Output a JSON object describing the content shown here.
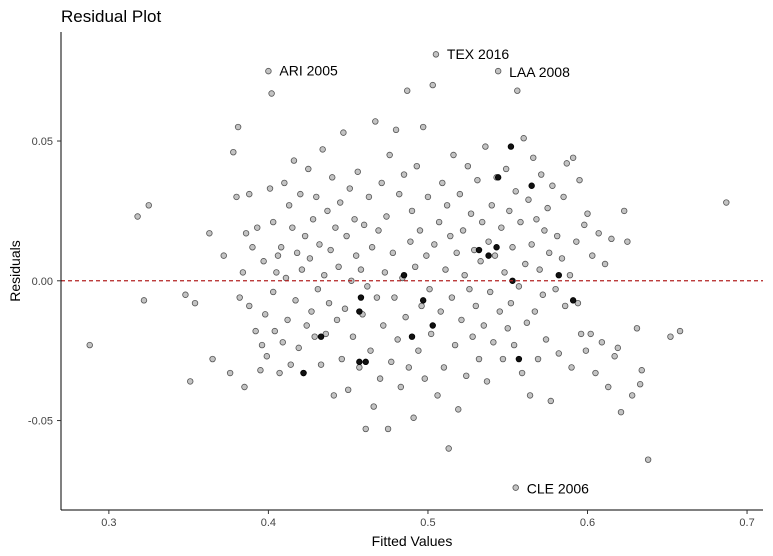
{
  "chart_data": {
    "type": "scatter",
    "title": "Residual Plot",
    "xlabel": "Fitted Values",
    "ylabel": "Residuals",
    "xlim": [
      0.27,
      0.71
    ],
    "ylim": [
      -0.082,
      0.089
    ],
    "x_ticks": [
      0.3,
      0.4,
      0.5,
      0.6,
      0.7
    ],
    "x_tick_labels": [
      "0.3",
      "0.4",
      "0.5",
      "0.6",
      "0.7"
    ],
    "y_ticks": [
      -0.05,
      0.0,
      0.05
    ],
    "y_tick_labels": [
      "-0.05",
      "0.00",
      "0.05"
    ],
    "grid": false,
    "reference_line": {
      "y": 0.0,
      "style": "dashed",
      "color": "#b22222"
    },
    "point_color": "#555555",
    "point_fill_opacity": 0.5,
    "annotations": [
      {
        "text": "ARI 2005",
        "x": 0.4,
        "y": 0.0755
      },
      {
        "text": "TEX 2016",
        "x": 0.505,
        "y": 0.0815
      },
      {
        "text": "LAA 2008",
        "x": 0.544,
        "y": 0.075
      },
      {
        "text": "CLE 2006",
        "x": 0.555,
        "y": -0.074
      }
    ],
    "points": [
      [
        0.288,
        -0.023
      ],
      [
        0.318,
        0.023
      ],
      [
        0.322,
        -0.007
      ],
      [
        0.325,
        0.027
      ],
      [
        0.348,
        -0.005
      ],
      [
        0.351,
        -0.036
      ],
      [
        0.354,
        -0.008
      ],
      [
        0.363,
        0.017
      ],
      [
        0.365,
        -0.028
      ],
      [
        0.372,
        0.009
      ],
      [
        0.376,
        -0.033
      ],
      [
        0.378,
        0.046
      ],
      [
        0.38,
        0.03
      ],
      [
        0.381,
        0.055
      ],
      [
        0.382,
        -0.006
      ],
      [
        0.384,
        0.003
      ],
      [
        0.385,
        -0.038
      ],
      [
        0.386,
        0.017
      ],
      [
        0.388,
        0.031
      ],
      [
        0.388,
        -0.009
      ],
      [
        0.39,
        0.012
      ],
      [
        0.392,
        -0.018
      ],
      [
        0.393,
        0.019
      ],
      [
        0.395,
        -0.032
      ],
      [
        0.396,
        -0.023
      ],
      [
        0.397,
        0.007
      ],
      [
        0.398,
        -0.012
      ],
      [
        0.399,
        -0.027
      ],
      [
        0.4,
        0.075
      ],
      [
        0.401,
        0.033
      ],
      [
        0.402,
        0.067
      ],
      [
        0.403,
        0.021
      ],
      [
        0.403,
        -0.004
      ],
      [
        0.404,
        -0.018
      ],
      [
        0.405,
        0.003
      ],
      [
        0.406,
        0.009
      ],
      [
        0.407,
        -0.033
      ],
      [
        0.408,
        0.012
      ],
      [
        0.409,
        -0.022
      ],
      [
        0.41,
        0.035
      ],
      [
        0.411,
        0.001
      ],
      [
        0.412,
        -0.014
      ],
      [
        0.413,
        0.027
      ],
      [
        0.414,
        -0.03
      ],
      [
        0.415,
        0.019
      ],
      [
        0.416,
        0.043
      ],
      [
        0.417,
        -0.007
      ],
      [
        0.418,
        0.01
      ],
      [
        0.419,
        -0.024
      ],
      [
        0.42,
        0.031
      ],
      [
        0.421,
        0.004
      ],
      [
        0.422,
        -0.033
      ],
      [
        0.423,
        0.016
      ],
      [
        0.424,
        -0.016
      ],
      [
        0.425,
        0.04
      ],
      [
        0.426,
        0.008
      ],
      [
        0.427,
        -0.011
      ],
      [
        0.428,
        0.022
      ],
      [
        0.429,
        -0.02
      ],
      [
        0.43,
        0.03
      ],
      [
        0.431,
        -0.003
      ],
      [
        0.432,
        0.013
      ],
      [
        0.433,
        -0.03
      ],
      [
        0.434,
        0.047
      ],
      [
        0.435,
        0.002
      ],
      [
        0.436,
        -0.019
      ],
      [
        0.437,
        0.025
      ],
      [
        0.438,
        -0.008
      ],
      [
        0.439,
        0.011
      ],
      [
        0.44,
        0.037
      ],
      [
        0.441,
        -0.041
      ],
      [
        0.442,
        0.019
      ],
      [
        0.443,
        -0.014
      ],
      [
        0.444,
        0.005
      ],
      [
        0.445,
        0.028
      ],
      [
        0.446,
        -0.028
      ],
      [
        0.447,
        0.053
      ],
      [
        0.448,
        -0.01
      ],
      [
        0.449,
        0.016
      ],
      [
        0.45,
        -0.039
      ],
      [
        0.451,
        0.033
      ],
      [
        0.452,
        0.0
      ],
      [
        0.453,
        -0.02
      ],
      [
        0.454,
        0.022
      ],
      [
        0.455,
        0.009
      ],
      [
        0.456,
        0.039
      ],
      [
        0.457,
        -0.031
      ],
      [
        0.458,
        0.004
      ],
      [
        0.459,
        -0.012
      ],
      [
        0.46,
        0.02
      ],
      [
        0.461,
        -0.053
      ],
      [
        0.462,
        -0.002
      ],
      [
        0.463,
        0.03
      ],
      [
        0.464,
        -0.025
      ],
      [
        0.465,
        0.012
      ],
      [
        0.466,
        -0.045
      ],
      [
        0.467,
        0.057
      ],
      [
        0.468,
        -0.006
      ],
      [
        0.469,
        0.018
      ],
      [
        0.47,
        -0.035
      ],
      [
        0.471,
        0.035
      ],
      [
        0.472,
        -0.016
      ],
      [
        0.473,
        0.003
      ],
      [
        0.474,
        0.023
      ],
      [
        0.475,
        -0.053
      ],
      [
        0.476,
        0.045
      ],
      [
        0.477,
        -0.029
      ],
      [
        0.478,
        0.01
      ],
      [
        0.479,
        -0.006
      ],
      [
        0.48,
        0.054
      ],
      [
        0.481,
        -0.021
      ],
      [
        0.482,
        0.031
      ],
      [
        0.483,
        -0.038
      ],
      [
        0.484,
        0.001
      ],
      [
        0.485,
        0.038
      ],
      [
        0.486,
        -0.013
      ],
      [
        0.487,
        0.068
      ],
      [
        0.488,
        -0.031
      ],
      [
        0.489,
        0.014
      ],
      [
        0.49,
        0.025
      ],
      [
        0.491,
        -0.049
      ],
      [
        0.492,
        0.005
      ],
      [
        0.493,
        0.041
      ],
      [
        0.494,
        -0.025
      ],
      [
        0.495,
        0.018
      ],
      [
        0.496,
        -0.009
      ],
      [
        0.497,
        0.055
      ],
      [
        0.498,
        -0.035
      ],
      [
        0.499,
        0.009
      ],
      [
        0.5,
        0.03
      ],
      [
        0.501,
        -0.003
      ],
      [
        0.502,
        -0.019
      ],
      [
        0.503,
        0.07
      ],
      [
        0.504,
        0.013
      ],
      [
        0.505,
        0.081
      ],
      [
        0.506,
        -0.041
      ],
      [
        0.507,
        0.021
      ],
      [
        0.508,
        -0.011
      ],
      [
        0.509,
        0.035
      ],
      [
        0.51,
        -0.031
      ],
      [
        0.511,
        0.004
      ],
      [
        0.512,
        0.027
      ],
      [
        0.513,
        -0.06
      ],
      [
        0.514,
        0.016
      ],
      [
        0.515,
        -0.006
      ],
      [
        0.516,
        0.045
      ],
      [
        0.517,
        -0.023
      ],
      [
        0.518,
        0.01
      ],
      [
        0.519,
        -0.046
      ],
      [
        0.52,
        0.031
      ],
      [
        0.521,
        -0.014
      ],
      [
        0.522,
        0.018
      ],
      [
        0.523,
        0.002
      ],
      [
        0.524,
        -0.034
      ],
      [
        0.525,
        0.041
      ],
      [
        0.526,
        -0.003
      ],
      [
        0.527,
        0.024
      ],
      [
        0.528,
        -0.02
      ],
      [
        0.529,
        0.011
      ],
      [
        0.53,
        -0.009
      ],
      [
        0.531,
        0.036
      ],
      [
        0.532,
        -0.028
      ],
      [
        0.533,
        0.007
      ],
      [
        0.534,
        0.021
      ],
      [
        0.535,
        -0.016
      ],
      [
        0.536,
        0.048
      ],
      [
        0.537,
        -0.036
      ],
      [
        0.538,
        0.014
      ],
      [
        0.539,
        -0.004
      ],
      [
        0.54,
        0.027
      ],
      [
        0.541,
        -0.022
      ],
      [
        0.542,
        0.009
      ],
      [
        0.543,
        0.037
      ],
      [
        0.544,
        0.075
      ],
      [
        0.545,
        -0.011
      ],
      [
        0.546,
        0.019
      ],
      [
        0.547,
        -0.028
      ],
      [
        0.548,
        0.003
      ],
      [
        0.549,
        0.04
      ],
      [
        0.55,
        -0.017
      ],
      [
        0.551,
        0.025
      ],
      [
        0.552,
        -0.008
      ],
      [
        0.553,
        0.012
      ],
      [
        0.554,
        -0.023
      ],
      [
        0.555,
        0.032
      ],
      [
        0.555,
        -0.074
      ],
      [
        0.556,
        0.068
      ],
      [
        0.557,
        -0.002
      ],
      [
        0.558,
        0.021
      ],
      [
        0.559,
        -0.033
      ],
      [
        0.56,
        0.051
      ],
      [
        0.561,
        0.006
      ],
      [
        0.562,
        -0.015
      ],
      [
        0.563,
        0.029
      ],
      [
        0.564,
        -0.041
      ],
      [
        0.565,
        0.013
      ],
      [
        0.566,
        0.044
      ],
      [
        0.567,
        -0.011
      ],
      [
        0.568,
        0.022
      ],
      [
        0.569,
        -0.028
      ],
      [
        0.57,
        0.004
      ],
      [
        0.571,
        0.038
      ],
      [
        0.572,
        -0.005
      ],
      [
        0.573,
        0.018
      ],
      [
        0.574,
        -0.021
      ],
      [
        0.575,
        0.026
      ],
      [
        0.576,
        0.01
      ],
      [
        0.577,
        -0.043
      ],
      [
        0.578,
        0.034
      ],
      [
        0.58,
        -0.003
      ],
      [
        0.581,
        0.016
      ],
      [
        0.582,
        -0.026
      ],
      [
        0.584,
        0.008
      ],
      [
        0.585,
        0.03
      ],
      [
        0.586,
        -0.009
      ],
      [
        0.587,
        0.042
      ],
      [
        0.589,
        0.002
      ],
      [
        0.59,
        -0.031
      ],
      [
        0.591,
        0.044
      ],
      [
        0.593,
        0.014
      ],
      [
        0.594,
        -0.008
      ],
      [
        0.595,
        0.036
      ],
      [
        0.596,
        -0.019
      ],
      [
        0.598,
        0.02
      ],
      [
        0.599,
        -0.025
      ],
      [
        0.6,
        0.024
      ],
      [
        0.602,
        -0.019
      ],
      [
        0.603,
        0.009
      ],
      [
        0.605,
        -0.033
      ],
      [
        0.607,
        0.017
      ],
      [
        0.609,
        -0.022
      ],
      [
        0.611,
        0.006
      ],
      [
        0.613,
        -0.038
      ],
      [
        0.615,
        0.015
      ],
      [
        0.617,
        -0.027
      ],
      [
        0.619,
        -0.024
      ],
      [
        0.621,
        -0.047
      ],
      [
        0.623,
        0.025
      ],
      [
        0.625,
        0.014
      ],
      [
        0.628,
        -0.041
      ],
      [
        0.631,
        -0.017
      ],
      [
        0.633,
        -0.037
      ],
      [
        0.634,
        -0.032
      ],
      [
        0.638,
        -0.064
      ],
      [
        0.652,
        -0.02
      ],
      [
        0.658,
        -0.018
      ],
      [
        0.687,
        0.028
      ]
    ],
    "highlighted_points": [
      [
        0.422,
        -0.033
      ],
      [
        0.433,
        -0.02
      ],
      [
        0.457,
        -0.029
      ],
      [
        0.457,
        -0.011
      ],
      [
        0.458,
        -0.006
      ],
      [
        0.461,
        -0.029
      ],
      [
        0.485,
        0.002
      ],
      [
        0.49,
        -0.02
      ],
      [
        0.497,
        -0.007
      ],
      [
        0.503,
        -0.016
      ],
      [
        0.532,
        0.011
      ],
      [
        0.538,
        0.009
      ],
      [
        0.543,
        0.012
      ],
      [
        0.544,
        0.037
      ],
      [
        0.552,
        0.048
      ],
      [
        0.553,
        0.0
      ],
      [
        0.557,
        -0.028
      ],
      [
        0.565,
        0.034
      ],
      [
        0.582,
        0.002
      ],
      [
        0.591,
        -0.007
      ]
    ]
  }
}
